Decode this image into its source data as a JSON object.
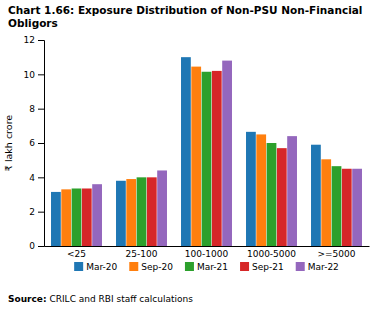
{
  "chart_data": {
    "type": "bar",
    "title": "Chart 1.66: Exposure Distribution of Non-PSU Non-Financial Obligors",
    "categories": [
      "<25",
      "25-100",
      "100-1000",
      "1000-5000",
      ">=5000"
    ],
    "series": [
      {
        "name": "Mar-20",
        "values": [
          3.15,
          3.8,
          11.0,
          6.65,
          5.9
        ]
      },
      {
        "name": "Sep-20",
        "values": [
          3.3,
          3.9,
          10.45,
          6.5,
          5.05
        ]
      },
      {
        "name": "Mar-21",
        "values": [
          3.35,
          4.0,
          10.15,
          6.0,
          4.65
        ]
      },
      {
        "name": "Sep-21",
        "values": [
          3.35,
          4.0,
          10.2,
          5.7,
          4.5
        ]
      },
      {
        "name": "Mar-22",
        "values": [
          3.6,
          4.4,
          10.8,
          6.4,
          4.5
        ]
      }
    ],
    "ylabel": "₹ lakh crore",
    "ylim": [
      0,
      12
    ],
    "yticks": [
      0,
      2,
      4,
      6,
      8,
      10,
      12
    ],
    "grid": false,
    "legend": "bottom",
    "annotations": [
      "Source:",
      " CRILC and RBI staff calculations"
    ]
  }
}
